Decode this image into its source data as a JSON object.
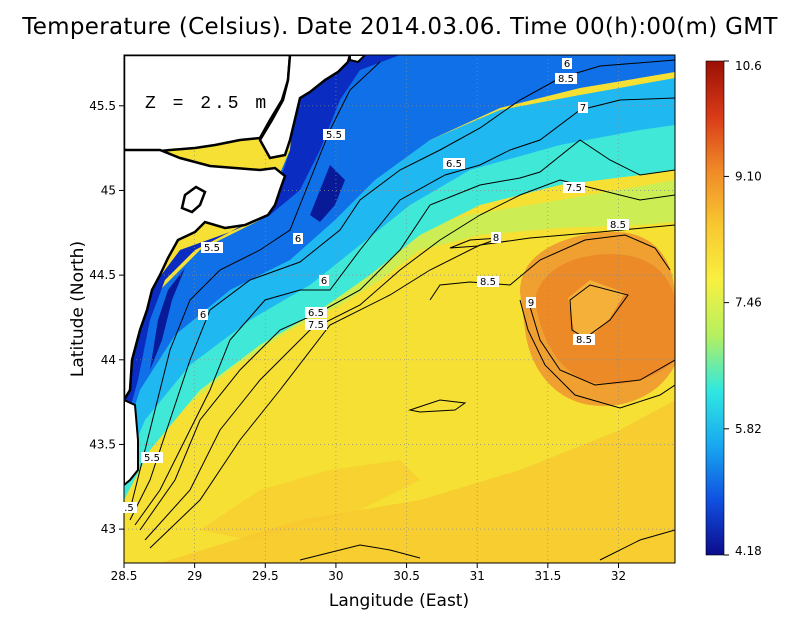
{
  "map": {
    "title": "Temperature (Celsius). Date 2014.03.06. Time 00(h):00(m)  GMT",
    "depth_label": "Z = 2.5 m",
    "xlabel": "Langitude (East)",
    "ylabel": "Latitude (North)",
    "xlim": [
      28.5,
      32.4
    ],
    "ylim": [
      42.8,
      45.8
    ],
    "x_ticks": [
      "28.5",
      "29",
      "29.5",
      "30",
      "30.5",
      "31",
      "31.5",
      "32"
    ],
    "y_ticks": [
      "43",
      "43.5",
      "44",
      "44.5",
      "45",
      "45.5"
    ],
    "colorbar": {
      "ticks": [
        "10.6",
        "9.10",
        "7.46",
        "5.82",
        "4.18"
      ],
      "min": 4.18,
      "max": 10.6,
      "colors": [
        "#0c0c8c",
        "#1050e0",
        "#18a8f0",
        "#30e8e0",
        "#b4f060",
        "#f8f040",
        "#f8c830",
        "#f08a28",
        "#d83a18",
        "#9a1004"
      ]
    },
    "contour_labels": [
      "6",
      "8.5",
      "7",
      "6.5",
      "7.5",
      "5.5",
      "8.5",
      "8",
      "5.5",
      "6",
      "8.5",
      "9",
      "6",
      "6.5",
      "7.5",
      "8.5",
      "5.5",
      "6",
      ".5"
    ],
    "grid": true,
    "land_color": "#ffffff",
    "sea_background": "#f6e034"
  },
  "chart_data": {
    "type": "heatmap",
    "title": "Temperature (Celsius). Date 2014.03.06. Time 00(h):00(m)  GMT",
    "xlabel": "Langitude (East)",
    "ylabel": "Latitude (North)",
    "xlim": [
      28.5,
      32.4
    ],
    "ylim": [
      42.8,
      45.8
    ],
    "zlim": [
      4.18,
      10.6
    ],
    "contour_levels": [
      5.5,
      6,
      6.5,
      7,
      7.5,
      8,
      8.5,
      9
    ]
  }
}
